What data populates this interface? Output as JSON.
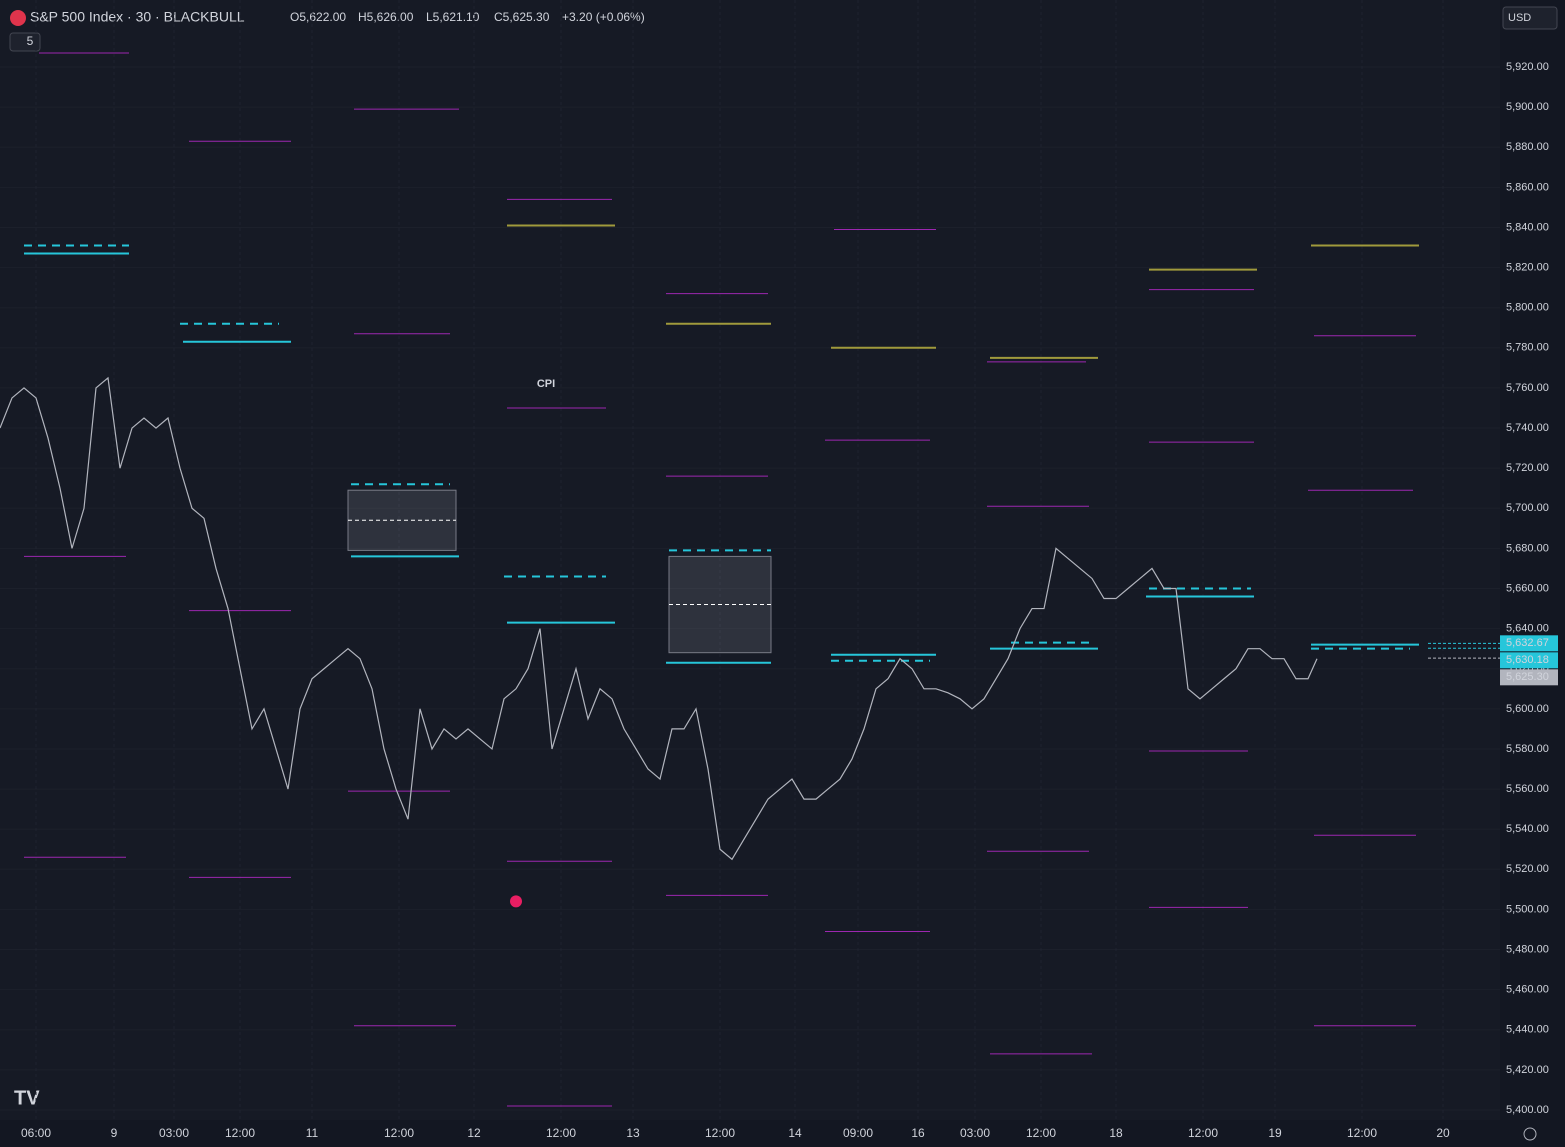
{
  "chart_data": {
    "type": "line",
    "title": "S&P 500 Index · 30 · BLACKBULL",
    "ohlc_labels": [
      "O5,622.00",
      "H5,626.00",
      "L5,621.10",
      "C5,625.30",
      "+3.20 (+0.06%)"
    ],
    "indicator_count": "5",
    "currency": "USD",
    "annotation": "CPI",
    "xlim": [
      0,
      500
    ],
    "ylim": [
      5400,
      5946
    ],
    "xticks": [
      {
        "value": 12,
        "label": "06:00"
      },
      {
        "value": 38,
        "label": "9"
      },
      {
        "value": 58,
        "label": "03:00"
      },
      {
        "value": 80,
        "label": "12:00"
      },
      {
        "value": 104,
        "label": "11"
      },
      {
        "value": 133,
        "label": "12:00"
      },
      {
        "value": 158,
        "label": "12"
      },
      {
        "value": 187,
        "label": "12:00"
      },
      {
        "value": 211,
        "label": "13"
      },
      {
        "value": 240,
        "label": "12:00"
      },
      {
        "value": 265,
        "label": "14"
      },
      {
        "value": 286,
        "label": "09:00"
      },
      {
        "value": 306,
        "label": "16"
      },
      {
        "value": 325,
        "label": "03:00"
      },
      {
        "value": 347,
        "label": "12:00"
      },
      {
        "value": 372,
        "label": "18"
      },
      {
        "value": 401,
        "label": "12:00"
      },
      {
        "value": 425,
        "label": "19"
      },
      {
        "value": 454,
        "label": "12:00"
      },
      {
        "value": 481,
        "label": "20"
      }
    ],
    "yticks": [
      {
        "value": 5400,
        "label": "5,400.00"
      },
      {
        "value": 5420,
        "label": "5,420.00"
      },
      {
        "value": 5440,
        "label": "5,440.00"
      },
      {
        "value": 5460,
        "label": "5,460.00"
      },
      {
        "value": 5480,
        "label": "5,480.00"
      },
      {
        "value": 5500,
        "label": "5,500.00"
      },
      {
        "value": 5520,
        "label": "5,520.00"
      },
      {
        "value": 5540,
        "label": "5,540.00"
      },
      {
        "value": 5560,
        "label": "5,560.00"
      },
      {
        "value": 5580,
        "label": "5,580.00"
      },
      {
        "value": 5600,
        "label": "5,600.00"
      },
      {
        "value": 5620,
        "label": "5,620.00"
      },
      {
        "value": 5640,
        "label": "5,640.00"
      },
      {
        "value": 5660,
        "label": "5,660.00"
      },
      {
        "value": 5680,
        "label": "5,680.00"
      },
      {
        "value": 5700,
        "label": "5,700.00"
      },
      {
        "value": 5720,
        "label": "5,720.00"
      },
      {
        "value": 5740,
        "label": "5,740.00"
      },
      {
        "value": 5760,
        "label": "5,760.00"
      },
      {
        "value": 5780,
        "label": "5,780.00"
      },
      {
        "value": 5800,
        "label": "5,800.00"
      },
      {
        "value": 5820,
        "label": "5,820.00"
      },
      {
        "value": 5840,
        "label": "5,840.00"
      },
      {
        "value": 5860,
        "label": "5,860.00"
      },
      {
        "value": 5880,
        "label": "5,880.00"
      },
      {
        "value": 5900,
        "label": "5,900.00"
      },
      {
        "value": 5920,
        "label": "5,920.00"
      }
    ],
    "series": [
      {
        "name": "S&P 500 Index",
        "color": "#b2b5be",
        "x": [
          0,
          4,
          8,
          12,
          16,
          20,
          24,
          28,
          32,
          36,
          40,
          44,
          48,
          52,
          56,
          60,
          64,
          68,
          72,
          76,
          80,
          84,
          88,
          92,
          96,
          100,
          104,
          108,
          112,
          116,
          120,
          124,
          128,
          132,
          136,
          140,
          144,
          148,
          152,
          156,
          160,
          164,
          168,
          172,
          176,
          180,
          184,
          188,
          192,
          196,
          200,
          204,
          208,
          212,
          216,
          220,
          224,
          228,
          232,
          236,
          240,
          244,
          248,
          252,
          256,
          260,
          264,
          268,
          272,
          276,
          280,
          284,
          288,
          292,
          296,
          300,
          304,
          308,
          312,
          316,
          320,
          324,
          328,
          332,
          336,
          340,
          344,
          348,
          352,
          356,
          360,
          364,
          368,
          372,
          376,
          380,
          384,
          388,
          392,
          396,
          400,
          404,
          408,
          412,
          416,
          420,
          424,
          428,
          432,
          436,
          439
        ],
        "values": [
          5740,
          5755,
          5760,
          5755,
          5735,
          5710,
          5680,
          5700,
          5760,
          5765,
          5720,
          5740,
          5745,
          5740,
          5745,
          5720,
          5700,
          5695,
          5670,
          5650,
          5620,
          5590,
          5600,
          5580,
          5560,
          5600,
          5615,
          5620,
          5625,
          5630,
          5625,
          5610,
          5580,
          5560,
          5545,
          5600,
          5580,
          5590,
          5585,
          5590,
          5585,
          5580,
          5605,
          5610,
          5620,
          5640,
          5580,
          5600,
          5620,
          5595,
          5610,
          5605,
          5590,
          5580,
          5570,
          5565,
          5590,
          5590,
          5600,
          5570,
          5530,
          5525,
          5535,
          5545,
          5555,
          5560,
          5565,
          5555,
          5555,
          5560,
          5565,
          5575,
          5590,
          5610,
          5615,
          5625,
          5620,
          5610,
          5610,
          5608,
          5605,
          5600,
          5605,
          5615,
          5625,
          5640,
          5650,
          5650,
          5680,
          5675,
          5670,
          5665,
          5655,
          5655,
          5660,
          5665,
          5670,
          5660,
          5660,
          5610,
          5605,
          5610,
          5615,
          5620,
          5630,
          5630,
          5625,
          5625,
          5615,
          5615,
          5625
        ]
      }
    ],
    "levels": [
      {
        "color": "#9c27b0",
        "dashed": false,
        "lines": [
          [
            13,
            43,
            5927
          ],
          [
            8,
            42,
            5676
          ],
          [
            8,
            42,
            5526
          ],
          [
            63,
            97,
            5883
          ],
          [
            63,
            97,
            5649
          ],
          [
            63,
            97,
            5516
          ],
          [
            118,
            153,
            5899
          ],
          [
            118,
            150,
            5787
          ],
          [
            116,
            150,
            5559
          ],
          [
            118,
            152,
            5442
          ],
          [
            169,
            204,
            5854
          ],
          [
            169,
            202,
            5750
          ],
          [
            169,
            204,
            5524
          ],
          [
            169,
            204,
            5402
          ],
          [
            222,
            256,
            5807
          ],
          [
            222,
            256,
            5716
          ],
          [
            222,
            256,
            5507
          ],
          [
            278,
            312,
            5839
          ],
          [
            275,
            310,
            5734
          ],
          [
            275,
            310,
            5489
          ],
          [
            329,
            362,
            5773
          ],
          [
            329,
            363,
            5701
          ],
          [
            329,
            363,
            5529
          ],
          [
            330,
            364,
            5428
          ],
          [
            383,
            418,
            5809
          ],
          [
            383,
            418,
            5733
          ],
          [
            383,
            416,
            5579
          ],
          [
            383,
            416,
            5501
          ],
          [
            438,
            472,
            5786
          ],
          [
            436,
            471,
            5709
          ],
          [
            438,
            472,
            5537
          ],
          [
            438,
            472,
            5442
          ]
        ]
      },
      {
        "color": "#a09a3c",
        "dashed": false,
        "lines": [
          [
            169,
            205,
            5841
          ],
          [
            222,
            257,
            5792
          ],
          [
            277,
            312,
            5780
          ],
          [
            330,
            366,
            5775
          ],
          [
            383,
            419,
            5819
          ],
          [
            437,
            473,
            5831
          ]
        ]
      },
      {
        "color": "#26c6da",
        "dashed": false,
        "lines": [
          [
            8,
            43,
            5827
          ],
          [
            61,
            97,
            5783
          ],
          [
            117,
            153,
            5676
          ],
          [
            169,
            205,
            5643
          ],
          [
            222,
            257,
            5623
          ],
          [
            277,
            312,
            5627
          ],
          [
            330,
            366,
            5630
          ],
          [
            382,
            418,
            5656
          ],
          [
            437,
            473,
            5632
          ]
        ]
      },
      {
        "color": "#26c6da",
        "dashed": true,
        "lines": [
          [
            8,
            43,
            5831
          ],
          [
            60,
            93,
            5792
          ],
          [
            117,
            150,
            5712
          ],
          [
            168,
            202,
            5666
          ],
          [
            223,
            257,
            5679
          ],
          [
            277,
            310,
            5624
          ],
          [
            337,
            363,
            5633
          ],
          [
            383,
            417,
            5660
          ],
          [
            437,
            470,
            5630
          ]
        ]
      }
    ],
    "boxes": [
      [
        116,
        152,
        5709,
        5679
      ],
      [
        223,
        257,
        5676,
        5628
      ]
    ],
    "markers": [
      {
        "x": 172,
        "value": 5504,
        "color": "#e91e63"
      }
    ],
    "annotation_at": [
      182,
      5762
    ],
    "price_tags": [
      {
        "value": 5632.67,
        "label": "5,632.67",
        "color": "#26c6da"
      },
      {
        "value": 5630.18,
        "label": "5,630.18",
        "color": "#26c6da"
      },
      {
        "value": 5625.3,
        "label": "5,625.30",
        "color": "#b2b5be"
      }
    ]
  }
}
